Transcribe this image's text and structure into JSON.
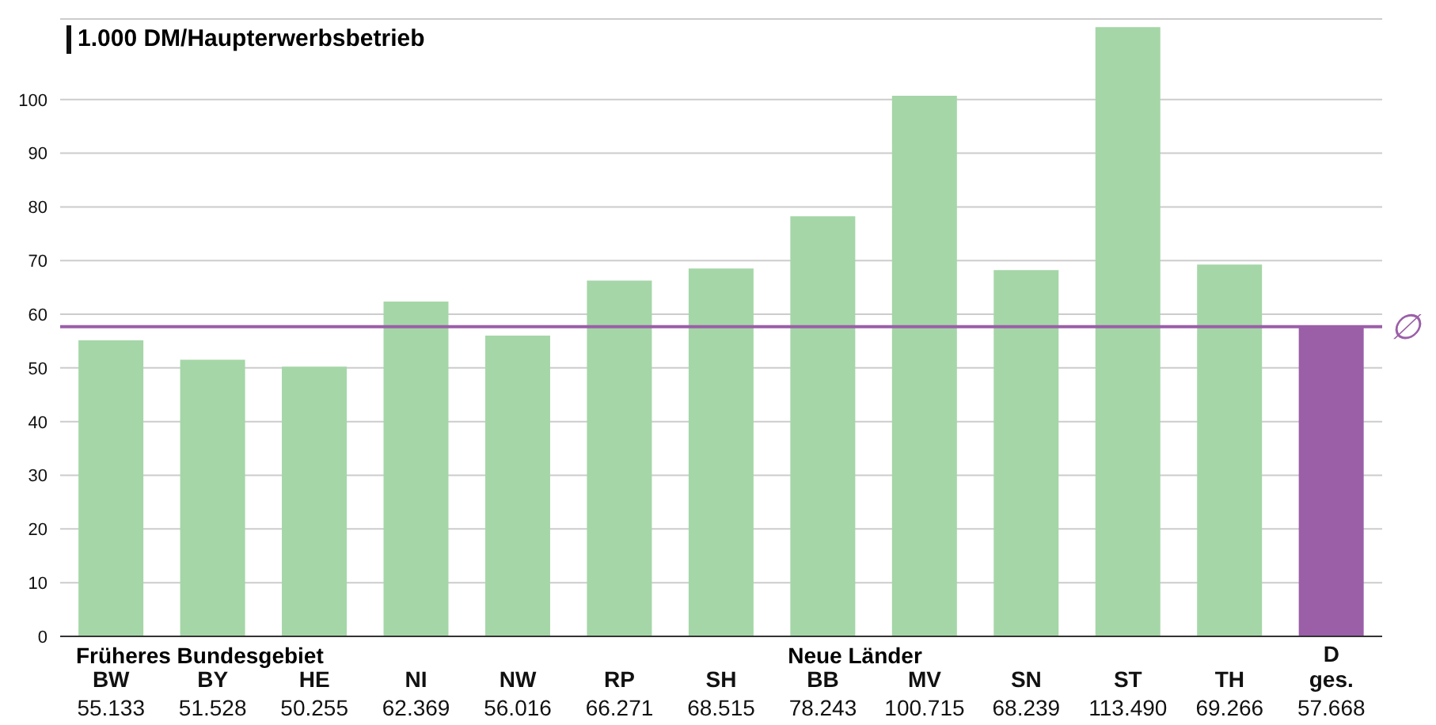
{
  "chart_data": {
    "type": "bar",
    "title": "1.000 DM/Haupterwerbsbetrieb",
    "categories": [
      "BW",
      "BY",
      "HE",
      "NI",
      "NW",
      "RP",
      "SH",
      "BB",
      "MV",
      "SN",
      "ST",
      "TH",
      "D ges."
    ],
    "values": [
      55.133,
      51.528,
      50.255,
      62.369,
      56.016,
      66.271,
      68.515,
      78.243,
      100.715,
      68.239,
      113.49,
      69.266,
      57.668
    ],
    "value_labels": [
      "55.133",
      "51.528",
      "50.255",
      "62.369",
      "56.016",
      "66.271",
      "68.515",
      "78.243",
      "100.715",
      "68.239",
      "113.490",
      "69.266",
      "57.668"
    ],
    "colors": [
      "#a5d6a7",
      "#a5d6a7",
      "#a5d6a7",
      "#a5d6a7",
      "#a5d6a7",
      "#a5d6a7",
      "#a5d6a7",
      "#a5d6a7",
      "#a5d6a7",
      "#a5d6a7",
      "#a5d6a7",
      "#a5d6a7",
      "#9b5fa8"
    ],
    "ylim": [
      0,
      115
    ],
    "yticks": [
      0,
      10,
      20,
      30,
      40,
      50,
      60,
      70,
      80,
      90,
      100
    ],
    "grid": "y",
    "legend": false,
    "ref_lines": [
      {
        "axis": "y",
        "value": 57.668,
        "label": "∅",
        "color": "#9b5fa8"
      }
    ],
    "annotations": [
      "Früheres Bundesgebiet",
      "Neue Länder"
    ]
  }
}
